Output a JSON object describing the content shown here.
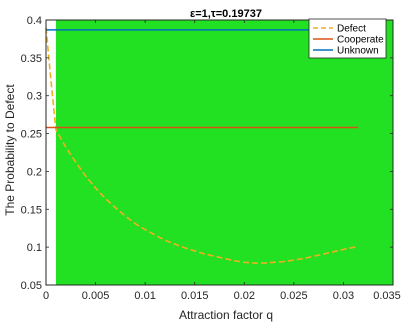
{
  "chart_data": {
    "type": "line",
    "title": "ε=1,τ=0.19737",
    "xlabel": "Attraction factor q",
    "ylabel": "The Probability to Defect",
    "xlim": [
      0,
      0.035
    ],
    "ylim": [
      0.05,
      0.4
    ],
    "xticks": [
      0,
      0.005,
      0.01,
      0.015,
      0.02,
      0.025,
      0.03,
      0.035
    ],
    "xtick_labels": [
      "0",
      "0.005",
      "0.01",
      "0.015",
      "0.02",
      "0.025",
      "0.03",
      "0.035"
    ],
    "yticks": [
      0.05,
      0.1,
      0.15,
      0.2,
      0.25,
      0.3,
      0.35,
      0.4
    ],
    "ytick_labels": [
      "0.05",
      "0.1",
      "0.15",
      "0.2",
      "0.25",
      "0.3",
      "0.35",
      "0.4"
    ],
    "grid": false,
    "legend_position": "top-right",
    "background_region": {
      "x_start": 0.001,
      "x_end": 0.035,
      "color": "#22e022"
    },
    "series": [
      {
        "name": "Defect",
        "style": "dashed",
        "color": "#edb120",
        "x": [
          0,
          0.0005,
          0.001,
          0.002,
          0.003,
          0.004,
          0.005,
          0.006,
          0.007,
          0.008,
          0.009,
          0.01,
          0.011,
          0.012,
          0.013,
          0.014,
          0.015,
          0.016,
          0.017,
          0.018,
          0.019,
          0.02,
          0.021,
          0.022,
          0.023,
          0.024,
          0.025,
          0.026,
          0.027,
          0.028,
          0.029,
          0.03,
          0.0315
        ],
        "y": [
          0.39,
          0.32,
          0.255,
          0.232,
          0.212,
          0.194,
          0.178,
          0.164,
          0.152,
          0.141,
          0.131,
          0.123,
          0.116,
          0.109,
          0.104,
          0.099,
          0.095,
          0.091,
          0.088,
          0.085,
          0.082,
          0.08,
          0.079,
          0.079,
          0.08,
          0.081,
          0.083,
          0.085,
          0.088,
          0.091,
          0.094,
          0.097,
          0.101
        ]
      },
      {
        "name": "Cooperate",
        "style": "solid",
        "color": "#d95319",
        "x": [
          0,
          0.0315
        ],
        "y": [
          0.258,
          0.258
        ]
      },
      {
        "name": "Unknown",
        "style": "solid",
        "color": "#0072bd",
        "x": [
          0,
          0.0315
        ],
        "y": [
          0.387,
          0.387
        ]
      }
    ]
  }
}
